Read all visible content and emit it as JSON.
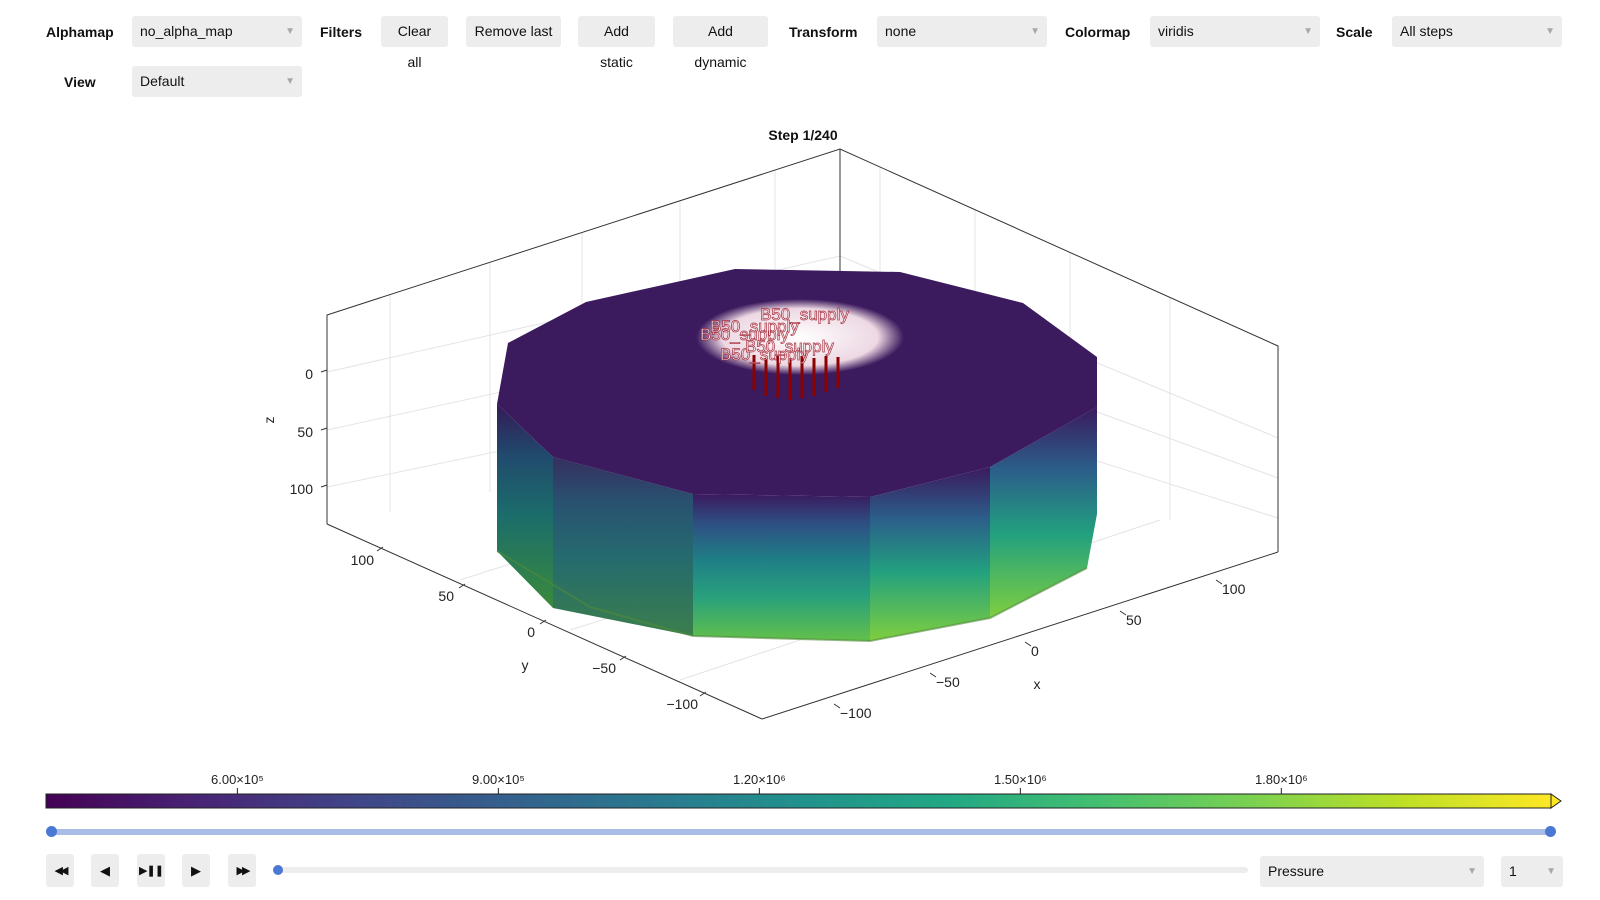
{
  "toolbar": {
    "alphamap_label": "Alphamap",
    "alphamap_value": "no_alpha_map",
    "filters_label": "Filters",
    "clear_all": "Clear all",
    "remove_last": "Remove last",
    "add_static": "Add static",
    "add_dynamic": "Add dynamic",
    "transform_label": "Transform",
    "transform_value": "none",
    "colormap_label": "Colormap",
    "colormap_value": "viridis",
    "scale_label": "Scale",
    "scale_value": "All steps",
    "view_label": "View",
    "view_value": "Default"
  },
  "plot": {
    "title": "Step 1/240",
    "x_label": "x",
    "y_label": "y",
    "z_label": "z",
    "x_ticks": [
      "−100",
      "−50",
      "0",
      "50",
      "100"
    ],
    "y_ticks": [
      "−100",
      "−50",
      "0",
      "50",
      "100"
    ],
    "z_ticks": [
      "0",
      "50",
      "100"
    ],
    "well_label": "B50_supply",
    "colors": {
      "top_face": "#3b1a5e",
      "well": "#8b0000"
    }
  },
  "colorbar": {
    "ticks": [
      "6.00×10⁵",
      "9.00×10⁵",
      "1.20×10⁶",
      "1.50×10⁶",
      "1.80×10⁶"
    ],
    "tick_values": [
      600000,
      900000,
      1200000,
      1500000,
      1800000
    ],
    "range": [
      380000,
      2110000
    ],
    "colormap": "viridis"
  },
  "range_slider": {
    "low": 0.0,
    "high": 1.0
  },
  "playback": {
    "step_slider_value": 0.0,
    "variable_value": "Pressure",
    "step_value": "1"
  },
  "chart_data": {
    "type": "3d-mesh",
    "title": "Step 1/240",
    "xlabel": "x",
    "ylabel": "y",
    "zlabel": "z",
    "xlim": [
      -120,
      120
    ],
    "ylim": [
      -120,
      120
    ],
    "zlim": [
      130,
      -40
    ],
    "x_ticks": [
      -100,
      -50,
      0,
      50,
      100
    ],
    "y_ticks": [
      -100,
      -50,
      0,
      50,
      100
    ],
    "z_ticks": [
      0,
      50,
      100
    ],
    "colorbar_ticks": [
      600000,
      900000,
      1200000,
      1500000,
      1800000
    ],
    "colormap": "viridis",
    "grid": true
  }
}
